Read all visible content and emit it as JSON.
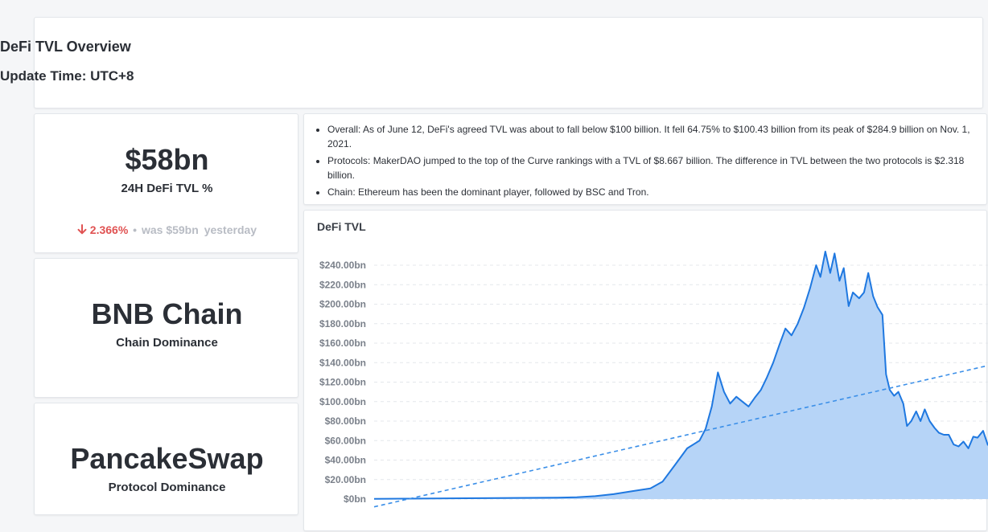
{
  "header": {
    "title": "DeFi TVL Overview",
    "update_time": "Update Time: UTC+8"
  },
  "stats": {
    "tvl": {
      "value": "$58bn",
      "label": "24H DeFi TVL %",
      "change_arrow_icon": "arrow-down-icon",
      "change_pct": "2.366%",
      "separator": "•",
      "was_text": "was $59bn",
      "yesterday_text": "yesterday"
    },
    "chain": {
      "value": "BNB Chain",
      "label": "Chain Dominance"
    },
    "protocol": {
      "value": "PancakeSwap",
      "label": "Protocol Dominance"
    }
  },
  "notes": [
    "Overall: As of June 12, DeFi's agreed TVL was about to fall below $100 billion. It fell 64.75% to $100.43 billion from its peak of $284.9 billion on Nov. 1, 2021.",
    "Protocols: MakerDAO jumped to the top of the Curve rankings with a TVL of $8.667 billion. The difference in TVL between the two protocols is $2.318 billion.",
    "Chain: Ethereum has been the dominant player, followed by BSC and Tron."
  ],
  "colors": {
    "line": "#1f78e0",
    "area": "#b6d4f7",
    "trend": "#3b8fe8",
    "negative": "#e05252",
    "muted": "#b8bcc4"
  },
  "chart_data": {
    "type": "area",
    "title": "DeFi TVL",
    "y_unit": "bn",
    "y_ticks": [
      "$240.00bn",
      "$220.00bn",
      "$200.00bn",
      "$180.00bn",
      "$160.00bn",
      "$140.00bn",
      "$120.00bn",
      "$100.00bn",
      "$80.00bn",
      "$60.00bn",
      "$40.00bn",
      "$20.00bn",
      "$0bn"
    ],
    "ylim": [
      0,
      250
    ],
    "grid": true,
    "x_range": [
      0,
      100
    ],
    "series": [
      {
        "values": [
          [
            0,
            0.2
          ],
          [
            5,
            0.4
          ],
          [
            10,
            0.6
          ],
          [
            15,
            0.8
          ],
          [
            20,
            1.0
          ],
          [
            25,
            1.2
          ],
          [
            30,
            1.4
          ],
          [
            33,
            1.8
          ],
          [
            36,
            3
          ],
          [
            39,
            5
          ],
          [
            42,
            8
          ],
          [
            45,
            11
          ],
          [
            47,
            18
          ],
          [
            49,
            35
          ],
          [
            51,
            52
          ],
          [
            53,
            60
          ],
          [
            54,
            72
          ],
          [
            55,
            95
          ],
          [
            56,
            130
          ],
          [
            57,
            110
          ],
          [
            58,
            98
          ],
          [
            59,
            105
          ],
          [
            60,
            100
          ],
          [
            61,
            95
          ],
          [
            62,
            104
          ],
          [
            63,
            112
          ],
          [
            64,
            125
          ],
          [
            65,
            140
          ],
          [
            66,
            158
          ],
          [
            67,
            175
          ],
          [
            68,
            168
          ],
          [
            69,
            180
          ],
          [
            70,
            196
          ],
          [
            71,
            216
          ],
          [
            72,
            240
          ],
          [
            72.7,
            228
          ],
          [
            73.5,
            254
          ],
          [
            74.3,
            232
          ],
          [
            75,
            252
          ],
          [
            75.8,
            224
          ],
          [
            76.5,
            237
          ],
          [
            77.3,
            198
          ],
          [
            78,
            212
          ],
          [
            79,
            206
          ],
          [
            79.8,
            212
          ],
          [
            80.5,
            232
          ],
          [
            81.3,
            208
          ],
          [
            82,
            197
          ],
          [
            82.8,
            189
          ],
          [
            83.4,
            128
          ],
          [
            84,
            112
          ],
          [
            84.7,
            106
          ],
          [
            85.4,
            110
          ],
          [
            86.2,
            98
          ],
          [
            86.8,
            75
          ],
          [
            87.5,
            80
          ],
          [
            88.3,
            90
          ],
          [
            89,
            80
          ],
          [
            89.7,
            92
          ],
          [
            90.5,
            80
          ],
          [
            91.3,
            73
          ],
          [
            92,
            68
          ],
          [
            92.8,
            66
          ],
          [
            93.6,
            66
          ],
          [
            94.4,
            56
          ],
          [
            95.2,
            54
          ],
          [
            96,
            59
          ],
          [
            96.8,
            52
          ],
          [
            97.6,
            64
          ],
          [
            98.3,
            63
          ],
          [
            99.2,
            70
          ],
          [
            100,
            55
          ]
        ]
      },
      {
        "name": "trend",
        "values": [
          [
            0,
            -8
          ],
          [
            100,
            137
          ]
        ]
      }
    ]
  }
}
